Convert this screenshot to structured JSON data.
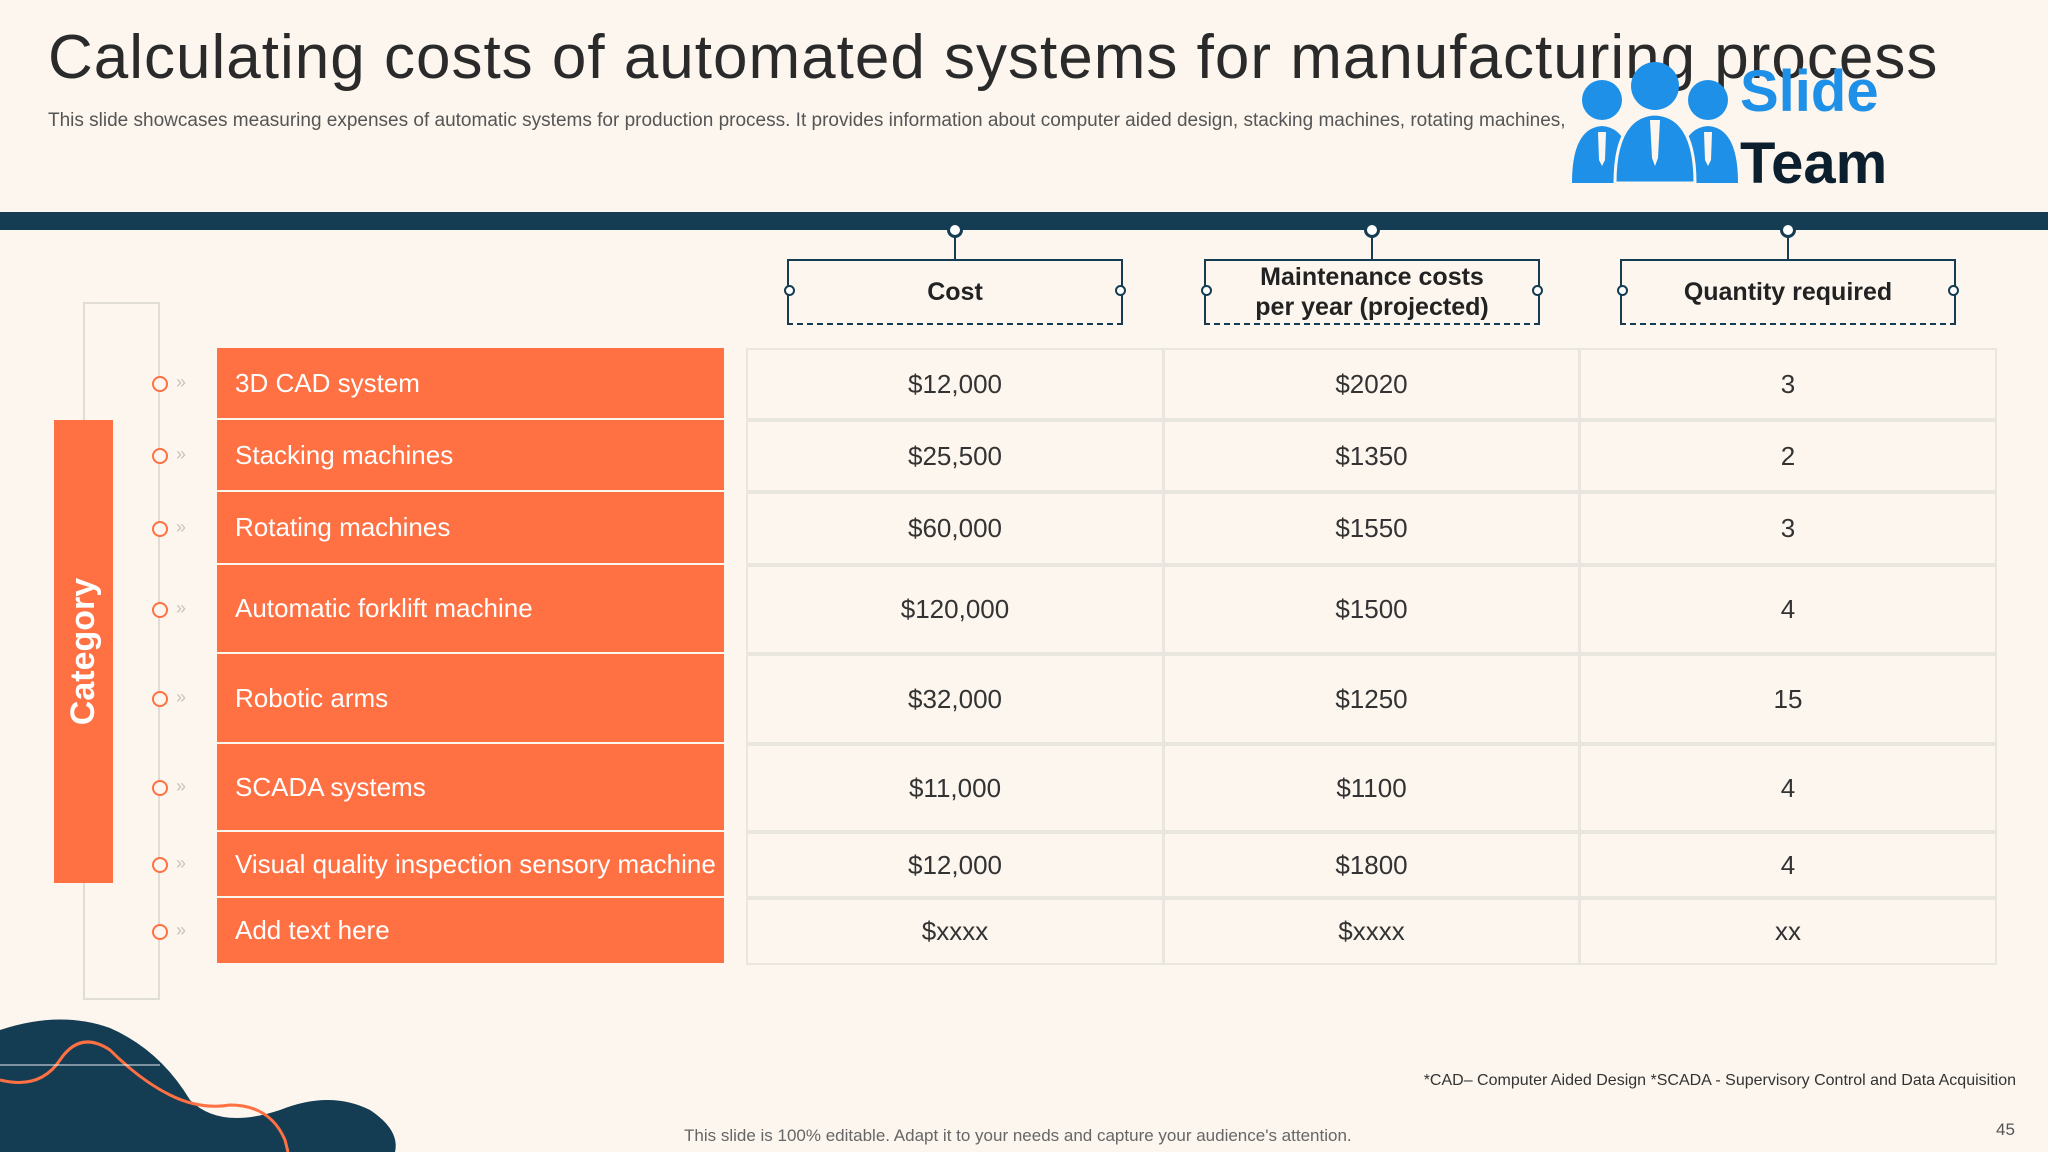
{
  "slide": {
    "title": "Calculating costs of automated systems for manufacturing process",
    "subtitle": "This slide showcases measuring expenses of automatic systems for production process. It provides information about computer aided design, stacking machines, rotating machines,",
    "logo": {
      "word1": "Slide",
      "word2": "Team"
    },
    "category_label": "Category",
    "columns": [
      "Cost",
      "Maintenance costs per year (projected)",
      "Quantity required"
    ],
    "rows": [
      {
        "label": "3D CAD system",
        "cost": "$12,000",
        "maintenance": "$2020",
        "quantity": "3"
      },
      {
        "label": "Stacking machines",
        "cost": "$25,500",
        "maintenance": "$1350",
        "quantity": "2"
      },
      {
        "label": "Rotating machines",
        "cost": "$60,000",
        "maintenance": "$1550",
        "quantity": "3"
      },
      {
        "label": "Automatic forklift  machine",
        "cost": "$120,000",
        "maintenance": "$1500",
        "quantity": "4"
      },
      {
        "label": "Robotic arms",
        "cost": "$32,000",
        "maintenance": "$1250",
        "quantity": "15"
      },
      {
        "label": "SCADA systems",
        "cost": "$11,000",
        "maintenance": "$1100",
        "quantity": "4"
      },
      {
        "label": "Visual quality  inspection sensory  machine",
        "cost": "$12,000",
        "maintenance": "$1800",
        "quantity": "4"
      },
      {
        "label": "Add text here",
        "cost": "$xxxx",
        "maintenance": "$xxxx",
        "quantity": "xx"
      }
    ],
    "footnote": "*CAD– Computer  Aided Design *SCADA - Supervisory Control and Data  Acquisition",
    "footer": "This slide is 100% editable.  Adapt it to your needs and capture your audience's attention.",
    "page_number": "45"
  },
  "colors": {
    "accent": "#ff7043",
    "navy": "#143d53",
    "background": "#fcf6ee",
    "logo_blue": "#1e90e8"
  },
  "icons": [
    "people-group-icon",
    "circle-marker-icon",
    "double-chevron-icon"
  ]
}
